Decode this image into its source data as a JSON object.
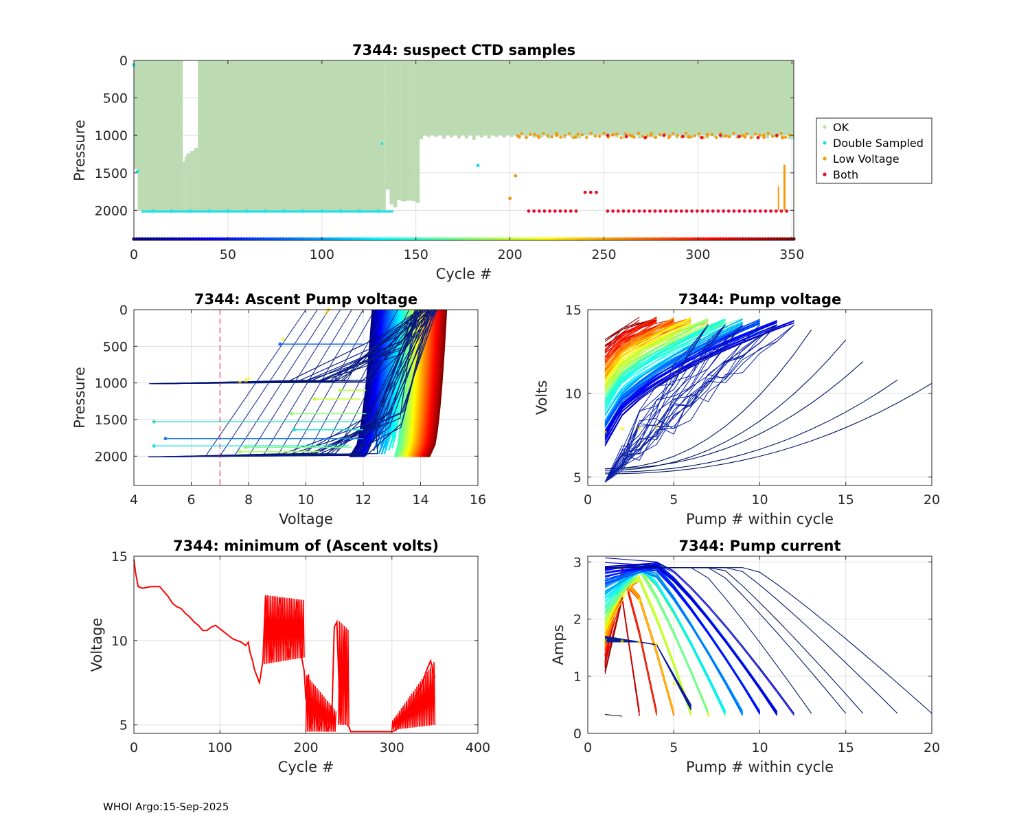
{
  "footer": "WHOI Argo:15-Sep-2025",
  "colors": {
    "ok": "#bcdbb2",
    "double_sampled": "#22e0e6",
    "low_voltage": "#f39a10",
    "both": "#e8102c",
    "threshold_line": "#e8102c",
    "min_volts_line": "#ff0000"
  },
  "chart_data": [
    {
      "id": "suspect",
      "type": "scatter",
      "title": "7344: suspect CTD samples",
      "xlabel": "Cycle #",
      "ylabel": "Pressure",
      "xlim": [
        0,
        351
      ],
      "ylim": [
        2400,
        0
      ],
      "xticks": [
        0,
        50,
        100,
        150,
        200,
        250,
        300,
        350
      ],
      "yticks": [
        0,
        500,
        1000,
        1500,
        2000
      ],
      "legend": {
        "position": "right",
        "entries": [
          "OK",
          "Double Sampled",
          "Low Voltage",
          "Both"
        ]
      },
      "series": [
        {
          "name": "OK",
          "description": "profile depth range per cycle",
          "segments": [
            [
              0,
              0,
              1450
            ],
            [
              2,
              0,
              2000
            ],
            [
              25,
              0,
              2000
            ],
            [
              26,
              1350,
              2000
            ],
            [
              27,
              1280,
              2000
            ],
            [
              28,
              1240,
              2000
            ],
            [
              30,
              1210,
              2000
            ],
            [
              32,
              1170,
              2000
            ],
            [
              34,
              0,
              2000
            ],
            [
              133,
              0,
              2000
            ],
            [
              134,
              0,
              1720
            ],
            [
              136,
              0,
              1920
            ],
            [
              138,
              0,
              1960
            ],
            [
              140,
              0,
              1860
            ],
            [
              142,
              0,
              1880
            ],
            [
              145,
              0,
              1870
            ],
            [
              148,
              0,
              1880
            ],
            [
              150,
              0,
              1900
            ],
            [
              152,
              0,
              1050
            ],
            [
              156,
              0,
              1020
            ],
            [
              160,
              0,
              1020
            ],
            [
              164,
              0,
              1040
            ],
            [
              168,
              0,
              1030
            ],
            [
              172,
              0,
              1040
            ],
            [
              176,
              0,
              1040
            ],
            [
              180,
              0,
              1060
            ],
            [
              184,
              0,
              1030
            ],
            [
              188,
              0,
              1040
            ],
            [
              192,
              0,
              1020
            ],
            [
              196,
              0,
              1030
            ],
            [
              200,
              0,
              1020
            ],
            [
              204,
              0,
              1000
            ],
            [
              208,
              0,
              1040
            ],
            [
              212,
              0,
              1030
            ],
            [
              216,
              0,
              1030
            ],
            [
              220,
              0,
              1040
            ],
            [
              224,
              0,
              1020
            ],
            [
              228,
              0,
              1040
            ],
            [
              232,
              0,
              1030
            ],
            [
              236,
              0,
              1040
            ],
            [
              240,
              0,
              560
            ],
            [
              244,
              0,
              540
            ],
            [
              248,
              0,
              530
            ],
            [
              252,
              0,
              1020
            ],
            [
              256,
              0,
              1030
            ],
            [
              260,
              0,
              1040
            ],
            [
              264,
              0,
              1030
            ],
            [
              268,
              0,
              1040
            ],
            [
              272,
              0,
              1030
            ],
            [
              276,
              0,
              1040
            ],
            [
              280,
              0,
              1020
            ],
            [
              284,
              0,
              1030
            ],
            [
              288,
              0,
              1040
            ],
            [
              292,
              0,
              1030
            ],
            [
              296,
              0,
              1040
            ],
            [
              300,
              0,
              1030
            ],
            [
              304,
              0,
              1040
            ],
            [
              308,
              0,
              1030
            ],
            [
              312,
              0,
              1040
            ],
            [
              316,
              0,
              1030
            ],
            [
              320,
              0,
              1040
            ],
            [
              324,
              0,
              1030
            ],
            [
              328,
              0,
              1040
            ],
            [
              332,
              0,
              1030
            ],
            [
              336,
              0,
              1040
            ],
            [
              340,
              0,
              1030
            ],
            [
              344,
              0,
              1040
            ],
            [
              348,
              0,
              1050
            ],
            [
              351,
              0,
              1050
            ]
          ]
        },
        {
          "name": "Double Sampled",
          "cycles": [
            0,
            2,
            10,
            20,
            30,
            40,
            50,
            60,
            70,
            80,
            90,
            100,
            110,
            120,
            130
          ],
          "pressures": [
            60,
            1480,
            2010,
            2010,
            2010,
            2010,
            2010,
            2010,
            2010,
            2010,
            2010,
            2010,
            2010,
            2010,
            2010
          ]
        },
        {
          "name": "Low Voltage",
          "cycles": [
            205,
            215,
            225,
            235,
            255,
            265,
            275,
            285,
            295,
            305,
            315,
            325,
            335,
            345,
            200,
            203
          ],
          "pressures": [
            1020,
            1010,
            1000,
            1020,
            990,
            1010,
            1000,
            1010,
            1020,
            1000,
            1010,
            1020,
            1000,
            1030,
            1840,
            1540
          ]
        },
        {
          "name": "Both",
          "cycles": [
            210,
            220,
            230,
            240,
            250,
            260,
            270,
            280,
            290,
            300,
            310,
            320,
            330,
            340,
            350
          ],
          "pressures": [
            2010,
            2010,
            2010,
            1760,
            2010,
            2010,
            2010,
            2010,
            2010,
            2010,
            2010,
            2010,
            2010,
            2010,
            2010
          ]
        }
      ]
    },
    {
      "id": "ascent",
      "type": "line",
      "title": "7344: Ascent Pump voltage",
      "xlabel": "Voltage",
      "ylabel": "Pressure",
      "xlim": [
        4,
        16
      ],
      "ylim": [
        2400,
        0
      ],
      "xticks": [
        4,
        6,
        8,
        10,
        12,
        14,
        16
      ],
      "yticks": [
        0,
        500,
        1000,
        1500,
        2000
      ],
      "threshold_voltage": 7,
      "series_description": "one profile per cycle, coloured by cycle number (jet colormap)"
    },
    {
      "id": "pumpv",
      "type": "line",
      "title": "7344: Pump voltage",
      "xlabel": "Pump # within cycle",
      "ylabel": "Volts",
      "xlim": [
        0,
        20
      ],
      "ylim": [
        4.5,
        15
      ],
      "xticks": [
        0,
        5,
        10,
        15,
        20
      ],
      "yticks": [
        5,
        10,
        15
      ]
    },
    {
      "id": "minv",
      "type": "line",
      "title": "7344: minimum of (Ascent volts)",
      "xlabel": "Cycle #",
      "ylabel": "Voltage",
      "xlim": [
        0,
        400
      ],
      "ylim": [
        4.5,
        15
      ],
      "xticks": [
        0,
        100,
        200,
        300,
        400
      ],
      "yticks": [
        5,
        10,
        15
      ],
      "x": [
        0,
        2,
        5,
        10,
        20,
        30,
        35,
        40,
        45,
        50,
        55,
        60,
        65,
        70,
        75,
        80,
        85,
        90,
        95,
        100,
        105,
        110,
        115,
        120,
        125,
        130,
        133,
        135,
        138,
        140,
        143,
        146,
        150,
        153,
        160,
        170,
        180,
        190,
        195,
        198,
        200,
        203,
        205,
        210,
        215,
        220,
        225,
        230,
        233,
        236,
        240,
        245,
        248,
        250,
        252,
        255,
        260,
        270,
        280,
        290,
        300,
        305,
        310,
        315,
        320,
        325,
        330,
        335,
        340,
        345,
        350
      ],
      "values": [
        14.8,
        14.0,
        13.2,
        13.1,
        13.2,
        13.2,
        12.9,
        12.6,
        12.2,
        12.0,
        11.9,
        11.6,
        11.4,
        11.1,
        10.9,
        10.6,
        10.6,
        10.8,
        10.9,
        10.7,
        10.5,
        10.3,
        10.1,
        10.0,
        9.9,
        9.7,
        9.9,
        9.3,
        8.8,
        8.3,
        7.9,
        7.5,
        8.8,
        12.6,
        8.8,
        12.5,
        8.9,
        12.3,
        9.0,
        8.2,
        6.5,
        8.0,
        4.8,
        5.9,
        4.7,
        5.6,
        4.7,
        5.2,
        10.8,
        11.1,
        5.1,
        10.6,
        5.0,
        4.9,
        4.6,
        4.6,
        4.6,
        4.6,
        4.6,
        4.6,
        4.6,
        4.7,
        5.1,
        5.4,
        5.9,
        6.4,
        6.9,
        7.4,
        8.2,
        8.8,
        7.8
      ]
    },
    {
      "id": "pumpc",
      "type": "line",
      "title": "7344: Pump current",
      "xlabel": "Pump # within cycle",
      "ylabel": "Amps",
      "xlim": [
        0,
        20
      ],
      "ylim": [
        0,
        3.1
      ],
      "xticks": [
        0,
        5,
        10,
        15,
        20
      ],
      "yticks": [
        0,
        1,
        2,
        3
      ]
    }
  ]
}
